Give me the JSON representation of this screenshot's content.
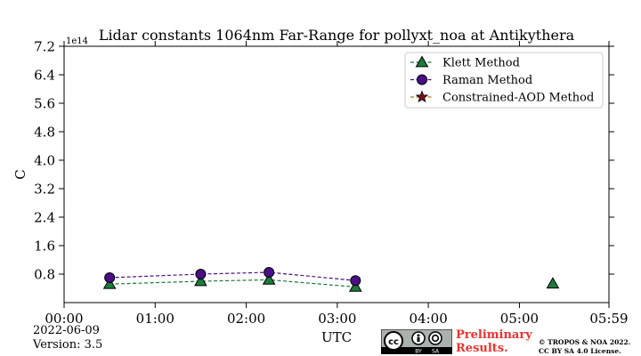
{
  "chart_data": {
    "type": "line",
    "title": "Lidar constants 1064nm Far-Range for pollyxt_noa at Antikythera",
    "xlabel": "UTC",
    "ylabel": "C",
    "y_multiplier_label": "1e14",
    "xlim": [
      "00:00",
      "05:59"
    ],
    "ylim": [
      0.0,
      7.2
    ],
    "x_ticks": [
      "00:00",
      "01:00",
      "02:00",
      "03:00",
      "04:00",
      "05:00",
      "05:59"
    ],
    "y_ticks": [
      "7.2",
      "6.4",
      "5.6",
      "4.8",
      "4.0",
      "3.2",
      "2.4",
      "1.6",
      "0.8"
    ],
    "y_tick_values": [
      7.2,
      6.4,
      5.6,
      4.8,
      4.0,
      3.2,
      2.4,
      1.6,
      0.8
    ],
    "grid": false,
    "legend_position": "top-right",
    "series": [
      {
        "name": "Klett Method",
        "marker": "triangle",
        "color": "#1a7a3c",
        "line_color": "#1a7a3c",
        "connected": true,
        "points": [
          {
            "x": "00:30",
            "y": 0.52
          },
          {
            "x": "01:30",
            "y": 0.6
          },
          {
            "x": "02:15",
            "y": 0.64
          },
          {
            "x": "03:12",
            "y": 0.44
          }
        ],
        "extra_points": [
          {
            "x": "05:22",
            "y": 0.53
          }
        ]
      },
      {
        "name": "Raman Method",
        "marker": "circle",
        "color": "#4a0f86",
        "line_color": "#4a0f86",
        "connected": true,
        "points": [
          {
            "x": "00:30",
            "y": 0.7
          },
          {
            "x": "01:30",
            "y": 0.8
          },
          {
            "x": "02:15",
            "y": 0.85
          },
          {
            "x": "03:12",
            "y": 0.62
          }
        ],
        "extra_points": []
      },
      {
        "name": "Constrained-AOD Method",
        "marker": "star",
        "color": "#7a1020",
        "line_color": "#b07a10",
        "connected": true,
        "points": [],
        "extra_points": []
      }
    ]
  },
  "footer": {
    "date": "2022-06-09",
    "version": "Version: 3.5",
    "preliminary_line1": "Preliminary",
    "preliminary_line2": "Results.",
    "credit_line1": "© TROPOS & NOA 2022.",
    "credit_line2": "CC BY SA 4.0 License.",
    "license_badge_cc": "cc",
    "license_badge_by": "BY",
    "license_badge_sa": "SA"
  }
}
